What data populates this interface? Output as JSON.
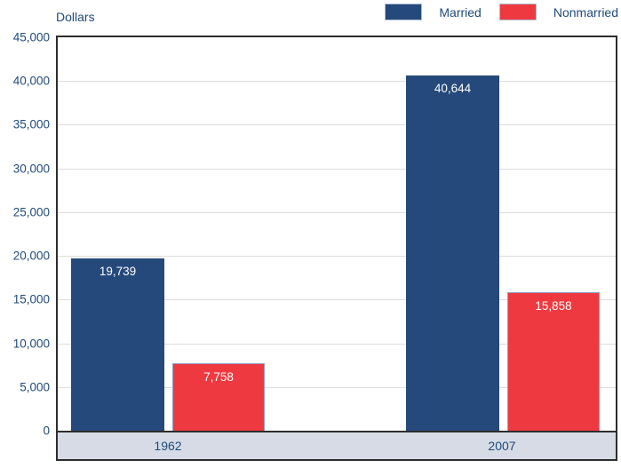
{
  "chart_data": {
    "type": "bar",
    "title": "",
    "ylabel": "Dollars",
    "xlabel": "",
    "categories": [
      "1962",
      "2007"
    ],
    "series": [
      {
        "name": "Married",
        "color": "#25497B",
        "values": [
          19739,
          40644
        ],
        "labels": [
          "19,739",
          "40,644"
        ]
      },
      {
        "name": "Nonmarried",
        "color": "#EF3940",
        "values": [
          7758,
          15858
        ],
        "labels": [
          "7,758",
          "15,858"
        ]
      }
    ],
    "ylim": [
      0,
      45000
    ],
    "ytick_interval": 5000,
    "yticks": [
      "45,000",
      "40,000",
      "35,000",
      "30,000",
      "25,000",
      "20,000",
      "15,000",
      "10,000",
      "5,000",
      "0"
    ],
    "grid": true,
    "legend_position": "top-right",
    "colors": {
      "axis_text": "#1E4A7A",
      "bar_label_text": "#FFFFFF",
      "band_background": "#D6DBE6",
      "gridline": "#DCDCDC",
      "frame_border": "#2D2D2D",
      "nonmarried_bar_border": "#8FA3C4"
    }
  }
}
